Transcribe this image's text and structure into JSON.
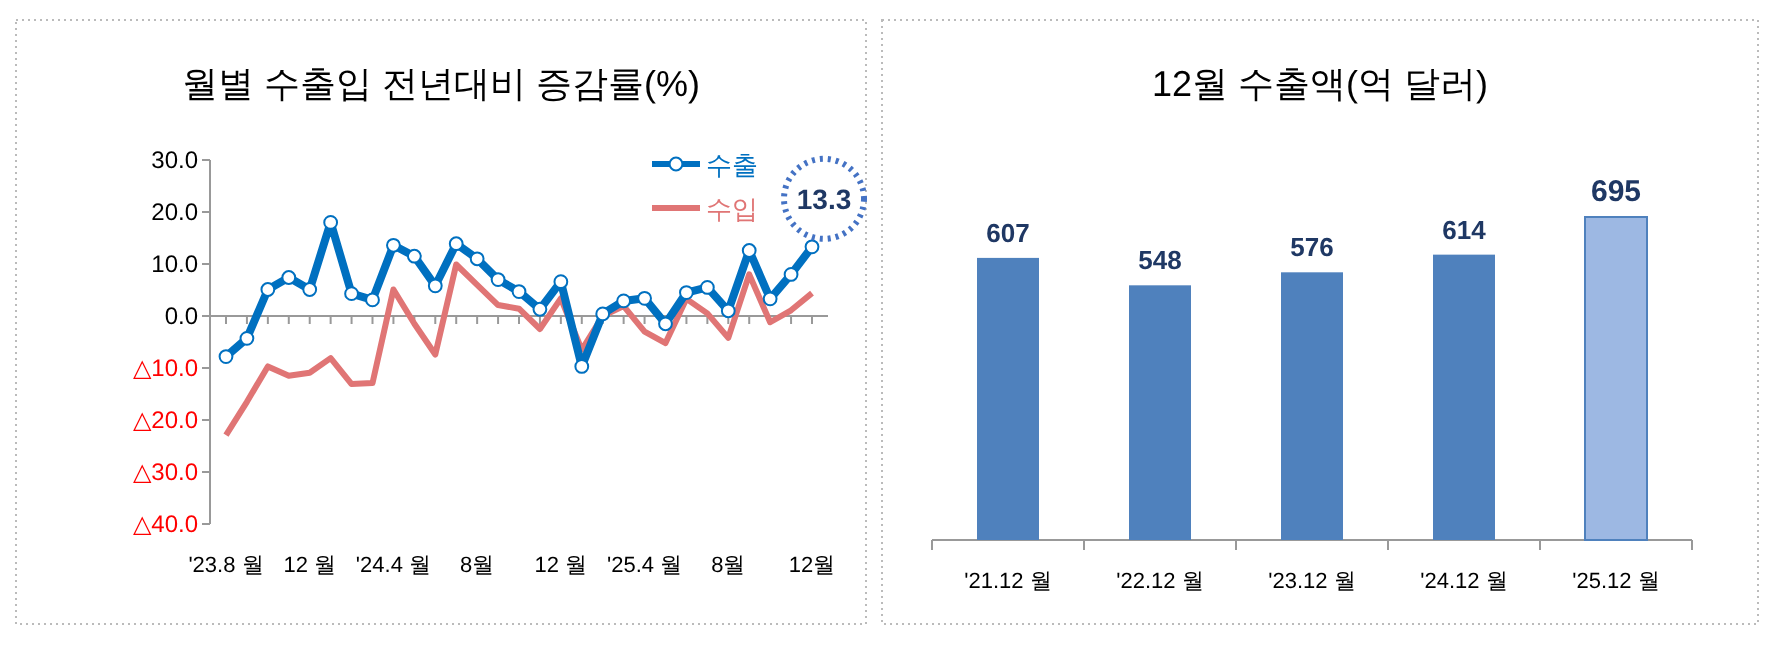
{
  "chart_data": [
    {
      "type": "line",
      "title": "월별 수출입 전년대비 증감률(%)",
      "categories": [
        "'23.8 월",
        null,
        null,
        null,
        "12 월",
        null,
        null,
        null,
        "'24.4 월",
        null,
        null,
        null,
        "8월",
        null,
        null,
        null,
        "12 월",
        null,
        null,
        null,
        "'25.4 월",
        null,
        null,
        null,
        "8월",
        null,
        null,
        null,
        "12월"
      ],
      "series": [
        {
          "name": "수출",
          "color": "#0070c0",
          "marker": "circle",
          "values": [
            -7.8,
            -4.3,
            5.1,
            7.4,
            5.1,
            18.0,
            4.3,
            3.1,
            13.6,
            11.5,
            5.8,
            13.9,
            11.0,
            7.0,
            4.7,
            1.3,
            6.6,
            -9.7,
            0.4,
            2.9,
            3.4,
            -1.5,
            4.5,
            5.5,
            1.0,
            12.6,
            3.3,
            8.0,
            13.3
          ]
        },
        {
          "name": "수입",
          "color": "#e07575",
          "marker": "none",
          "values": [
            -22.9,
            -16.5,
            -9.7,
            -11.5,
            -10.9,
            -8.1,
            -13.1,
            -12.9,
            5.1,
            -1.5,
            -7.4,
            9.9,
            6.0,
            2.1,
            1.4,
            -2.5,
            3.4,
            -6.5,
            0.0,
            1.9,
            -3.0,
            -5.2,
            3.3,
            0.5,
            -4.2,
            8.0,
            -1.2,
            1.1,
            4.4
          ]
        }
      ],
      "ylim": [
        -40,
        30
      ],
      "yticks": [
        {
          "value": 30,
          "label": "30.0"
        },
        {
          "value": 20,
          "label": "20.0"
        },
        {
          "value": 10,
          "label": "10.0"
        },
        {
          "value": 0,
          "label": "0.0"
        },
        {
          "value": -10,
          "label": "△10.0"
        },
        {
          "value": -20,
          "label": "△20.0"
        },
        {
          "value": -30,
          "label": "△30.0"
        },
        {
          "value": -40,
          "label": "△40.0"
        }
      ],
      "annotations": [
        {
          "text": "13.3",
          "x": "12월",
          "y": 13.3
        }
      ],
      "legend": "top right"
    },
    {
      "type": "bar",
      "title": "12월 수출액(억 달러)",
      "categories": [
        "'21.12 월",
        "'22.12 월",
        "'23.12 월",
        "'24.12 월",
        "'25.12 월"
      ],
      "values": [
        607,
        548,
        576,
        614,
        695
      ],
      "colors": [
        "#4f81bd",
        "#4f81bd",
        "#4f81bd",
        "#4f81bd",
        "#9db8e3"
      ],
      "data_labels": true
    }
  ]
}
